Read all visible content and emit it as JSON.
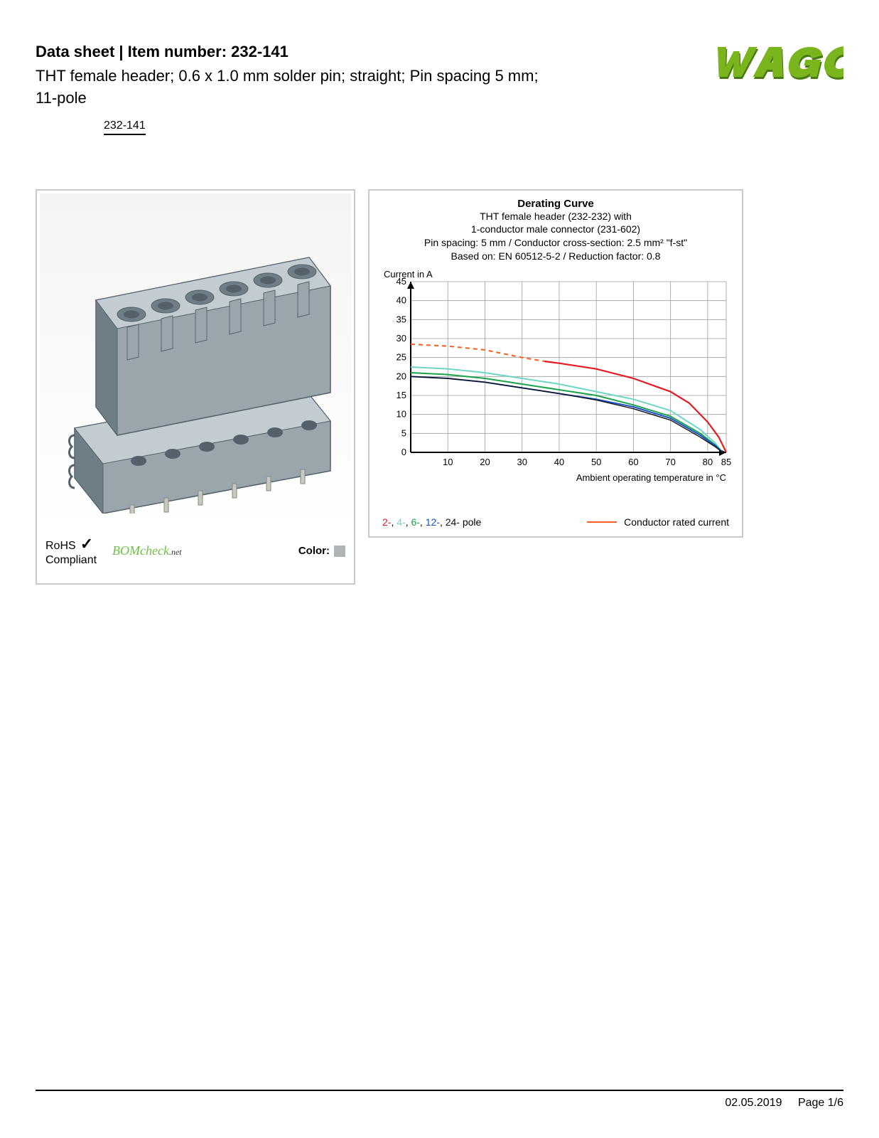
{
  "header": {
    "datasheet_label": "Data sheet",
    "sep": "  |  ",
    "item_label": "Item number:",
    "item_number": "232-141",
    "subtitle": "THT female header; 0.6 x 1.0 mm solder pin; straight; Pin spacing 5 mm; 11-pole",
    "partno_link": "232-141"
  },
  "logo": {
    "name": "wago-logo",
    "fill": "#7ab51d",
    "shadow": "#4a7a12"
  },
  "left_panel": {
    "product_color": "#9aa6ac",
    "rohs_line1": "RoHS",
    "rohs_line2": "Compliant",
    "bomcheck_text": "BOMcheck",
    "bomcheck_suffix": ".net",
    "color_label": "Color:",
    "color_swatch": "#b0b4b6"
  },
  "chart": {
    "title": "Derating Curve",
    "subtitle_lines": [
      "THT female header (232-232) with",
      "1-conductor male connector (231-602)",
      "Pin spacing: 5 mm / Conductor cross-section: 2.5 mm² \"f-st\"",
      "Based on: EN 60512-5-2 / Reduction factor: 0.8"
    ],
    "y_label": "Current in A",
    "x_label": "Ambient operating temperature in °C",
    "x_ticks": [
      10,
      20,
      30,
      40,
      50,
      60,
      70,
      80,
      85
    ],
    "y_ticks": [
      0,
      5,
      10,
      15,
      20,
      25,
      30,
      35,
      40,
      45
    ],
    "xlim": [
      0,
      85
    ],
    "ylim": [
      0,
      45
    ],
    "grid_color": "#9e9e9e",
    "axis_color": "#000000",
    "background": "#ffffff",
    "series": [
      {
        "name": "conductor-rated",
        "color": "#ff5a1f",
        "dash": "6 5",
        "width": 2,
        "points": [
          [
            0,
            28.5
          ],
          [
            10,
            28
          ],
          [
            20,
            27
          ],
          [
            30,
            25
          ],
          [
            36,
            24
          ]
        ]
      },
      {
        "name": "2-pole",
        "color": "#e31b23",
        "width": 2.2,
        "points": [
          [
            36,
            24
          ],
          [
            40,
            23.5
          ],
          [
            50,
            22
          ],
          [
            60,
            19.5
          ],
          [
            70,
            16
          ],
          [
            75,
            13
          ],
          [
            80,
            8
          ],
          [
            83,
            4
          ],
          [
            85,
            0
          ]
        ]
      },
      {
        "name": "4-pole",
        "color": "#6ed6c7",
        "width": 2,
        "points": [
          [
            0,
            22.5
          ],
          [
            10,
            22
          ],
          [
            20,
            21
          ],
          [
            30,
            19.5
          ],
          [
            40,
            18
          ],
          [
            50,
            16
          ],
          [
            60,
            14
          ],
          [
            70,
            11
          ],
          [
            78,
            6
          ],
          [
            82,
            2.5
          ],
          [
            84,
            0
          ]
        ]
      },
      {
        "name": "6-pole",
        "color": "#1aa34a",
        "width": 2,
        "points": [
          [
            0,
            21
          ],
          [
            10,
            20.5
          ],
          [
            20,
            19.5
          ],
          [
            30,
            18
          ],
          [
            40,
            16.5
          ],
          [
            50,
            15
          ],
          [
            60,
            12.5
          ],
          [
            70,
            9.5
          ],
          [
            78,
            5
          ],
          [
            82,
            2
          ],
          [
            84,
            0
          ]
        ]
      },
      {
        "name": "12-pole",
        "color": "#1a4fc9",
        "width": 2,
        "points": [
          [
            0,
            20
          ],
          [
            10,
            19.5
          ],
          [
            20,
            18.5
          ],
          [
            30,
            17
          ],
          [
            40,
            15.5
          ],
          [
            50,
            14
          ],
          [
            60,
            12
          ],
          [
            70,
            9
          ],
          [
            78,
            4.5
          ],
          [
            82,
            1.8
          ],
          [
            84,
            0
          ]
        ]
      },
      {
        "name": "24-pole",
        "color": "#111111",
        "width": 1.4,
        "points": [
          [
            0,
            20
          ],
          [
            10,
            19.5
          ],
          [
            20,
            18.5
          ],
          [
            30,
            17
          ],
          [
            40,
            15.5
          ],
          [
            50,
            13.8
          ],
          [
            60,
            11.5
          ],
          [
            70,
            8.5
          ],
          [
            78,
            4
          ],
          [
            82,
            1.5
          ],
          [
            84,
            0
          ]
        ]
      }
    ],
    "legend": {
      "poles": [
        {
          "label": "2-",
          "color": "#e31b23"
        },
        {
          "label": "4-",
          "color": "#6ed6c7"
        },
        {
          "label": "6-",
          "color": "#1aa34a"
        },
        {
          "label": "12-",
          "color": "#1a4fc9"
        },
        {
          "label": "24-",
          "color": "#111111"
        }
      ],
      "poles_suffix": " pole",
      "conductor_label": "Conductor rated current",
      "conductor_color": "#ff5a1f"
    }
  },
  "footer": {
    "date": "02.05.2019",
    "page": "Page 1/6"
  }
}
